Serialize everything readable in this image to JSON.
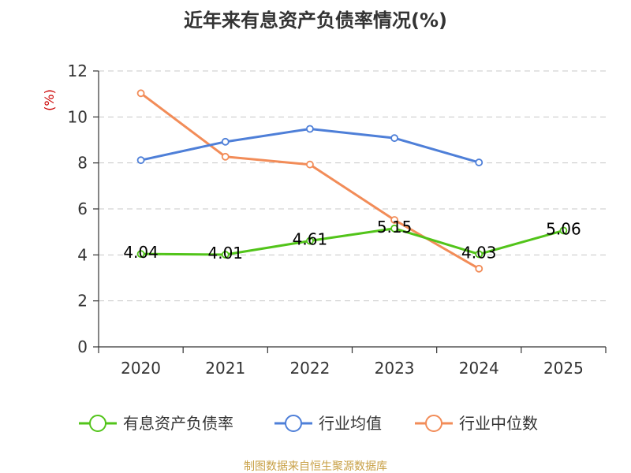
{
  "chart_data": {
    "type": "line",
    "title": "近年来有息资产负债率情况(%)",
    "ylabel": "(%)",
    "xlabel": "",
    "categories": [
      "2020",
      "2021",
      "2022",
      "2023",
      "2024",
      "2025"
    ],
    "ylim": [
      0,
      12
    ],
    "yticks": [
      0,
      2,
      4,
      6,
      8,
      10,
      12
    ],
    "grid": true,
    "legend_position": "bottom",
    "series": [
      {
        "name": "有息资产负债率",
        "color": "#52c41a",
        "values": [
          4.04,
          4.01,
          4.61,
          5.15,
          4.03,
          5.06
        ],
        "labels": [
          "4.04",
          "4.01",
          "4.61",
          "5.15",
          "4.03",
          "5.06"
        ]
      },
      {
        "name": "行业均值",
        "color": "#4e7fd8",
        "values": [
          8.12,
          8.92,
          9.48,
          9.08,
          8.02,
          null
        ]
      },
      {
        "name": "行业中位数",
        "color": "#f28c58",
        "values": [
          11.03,
          8.27,
          7.93,
          5.52,
          3.4,
          null
        ]
      }
    ],
    "source": "制图数据来自恒生聚源数据库",
    "source_color": "#c8a046",
    "ylabel_color": "#cc0000"
  }
}
